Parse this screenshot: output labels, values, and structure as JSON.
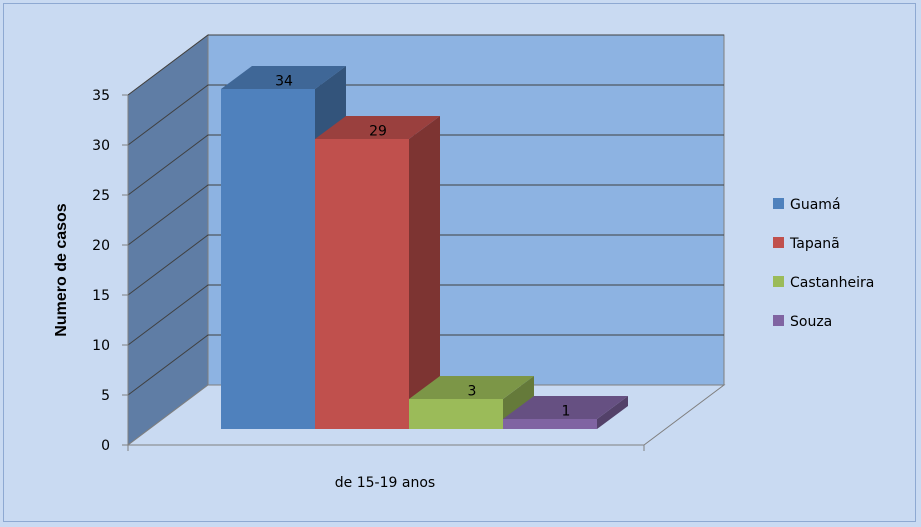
{
  "chart_data": {
    "type": "bar",
    "style": "3d-clustered-column",
    "categories": [
      "de 15-19 anos"
    ],
    "series": [
      {
        "name": "Guamá",
        "values": [
          34
        ],
        "color": "#4f81bd"
      },
      {
        "name": "Tapanã",
        "values": [
          29
        ],
        "color": "#c0504d"
      },
      {
        "name": "Castanheira",
        "values": [
          3
        ],
        "color": "#9bbb59"
      },
      {
        "name": "Souza",
        "values": [
          1
        ],
        "color": "#8064a2"
      }
    ],
    "ylabel": "Numero de casos",
    "xlabel": "",
    "ylim": [
      0,
      35
    ],
    "yticks": [
      0,
      5,
      10,
      15,
      20,
      25,
      30,
      35
    ],
    "data_labels": [
      "34",
      "29",
      "3",
      "1"
    ],
    "grid": true,
    "legend_position": "right",
    "colors": {
      "background": "#c9daf2",
      "back_wall": "#8db3e2",
      "side_wall": "#5f7da5",
      "floor": "#c9daf2",
      "gridline": "#404040"
    }
  }
}
